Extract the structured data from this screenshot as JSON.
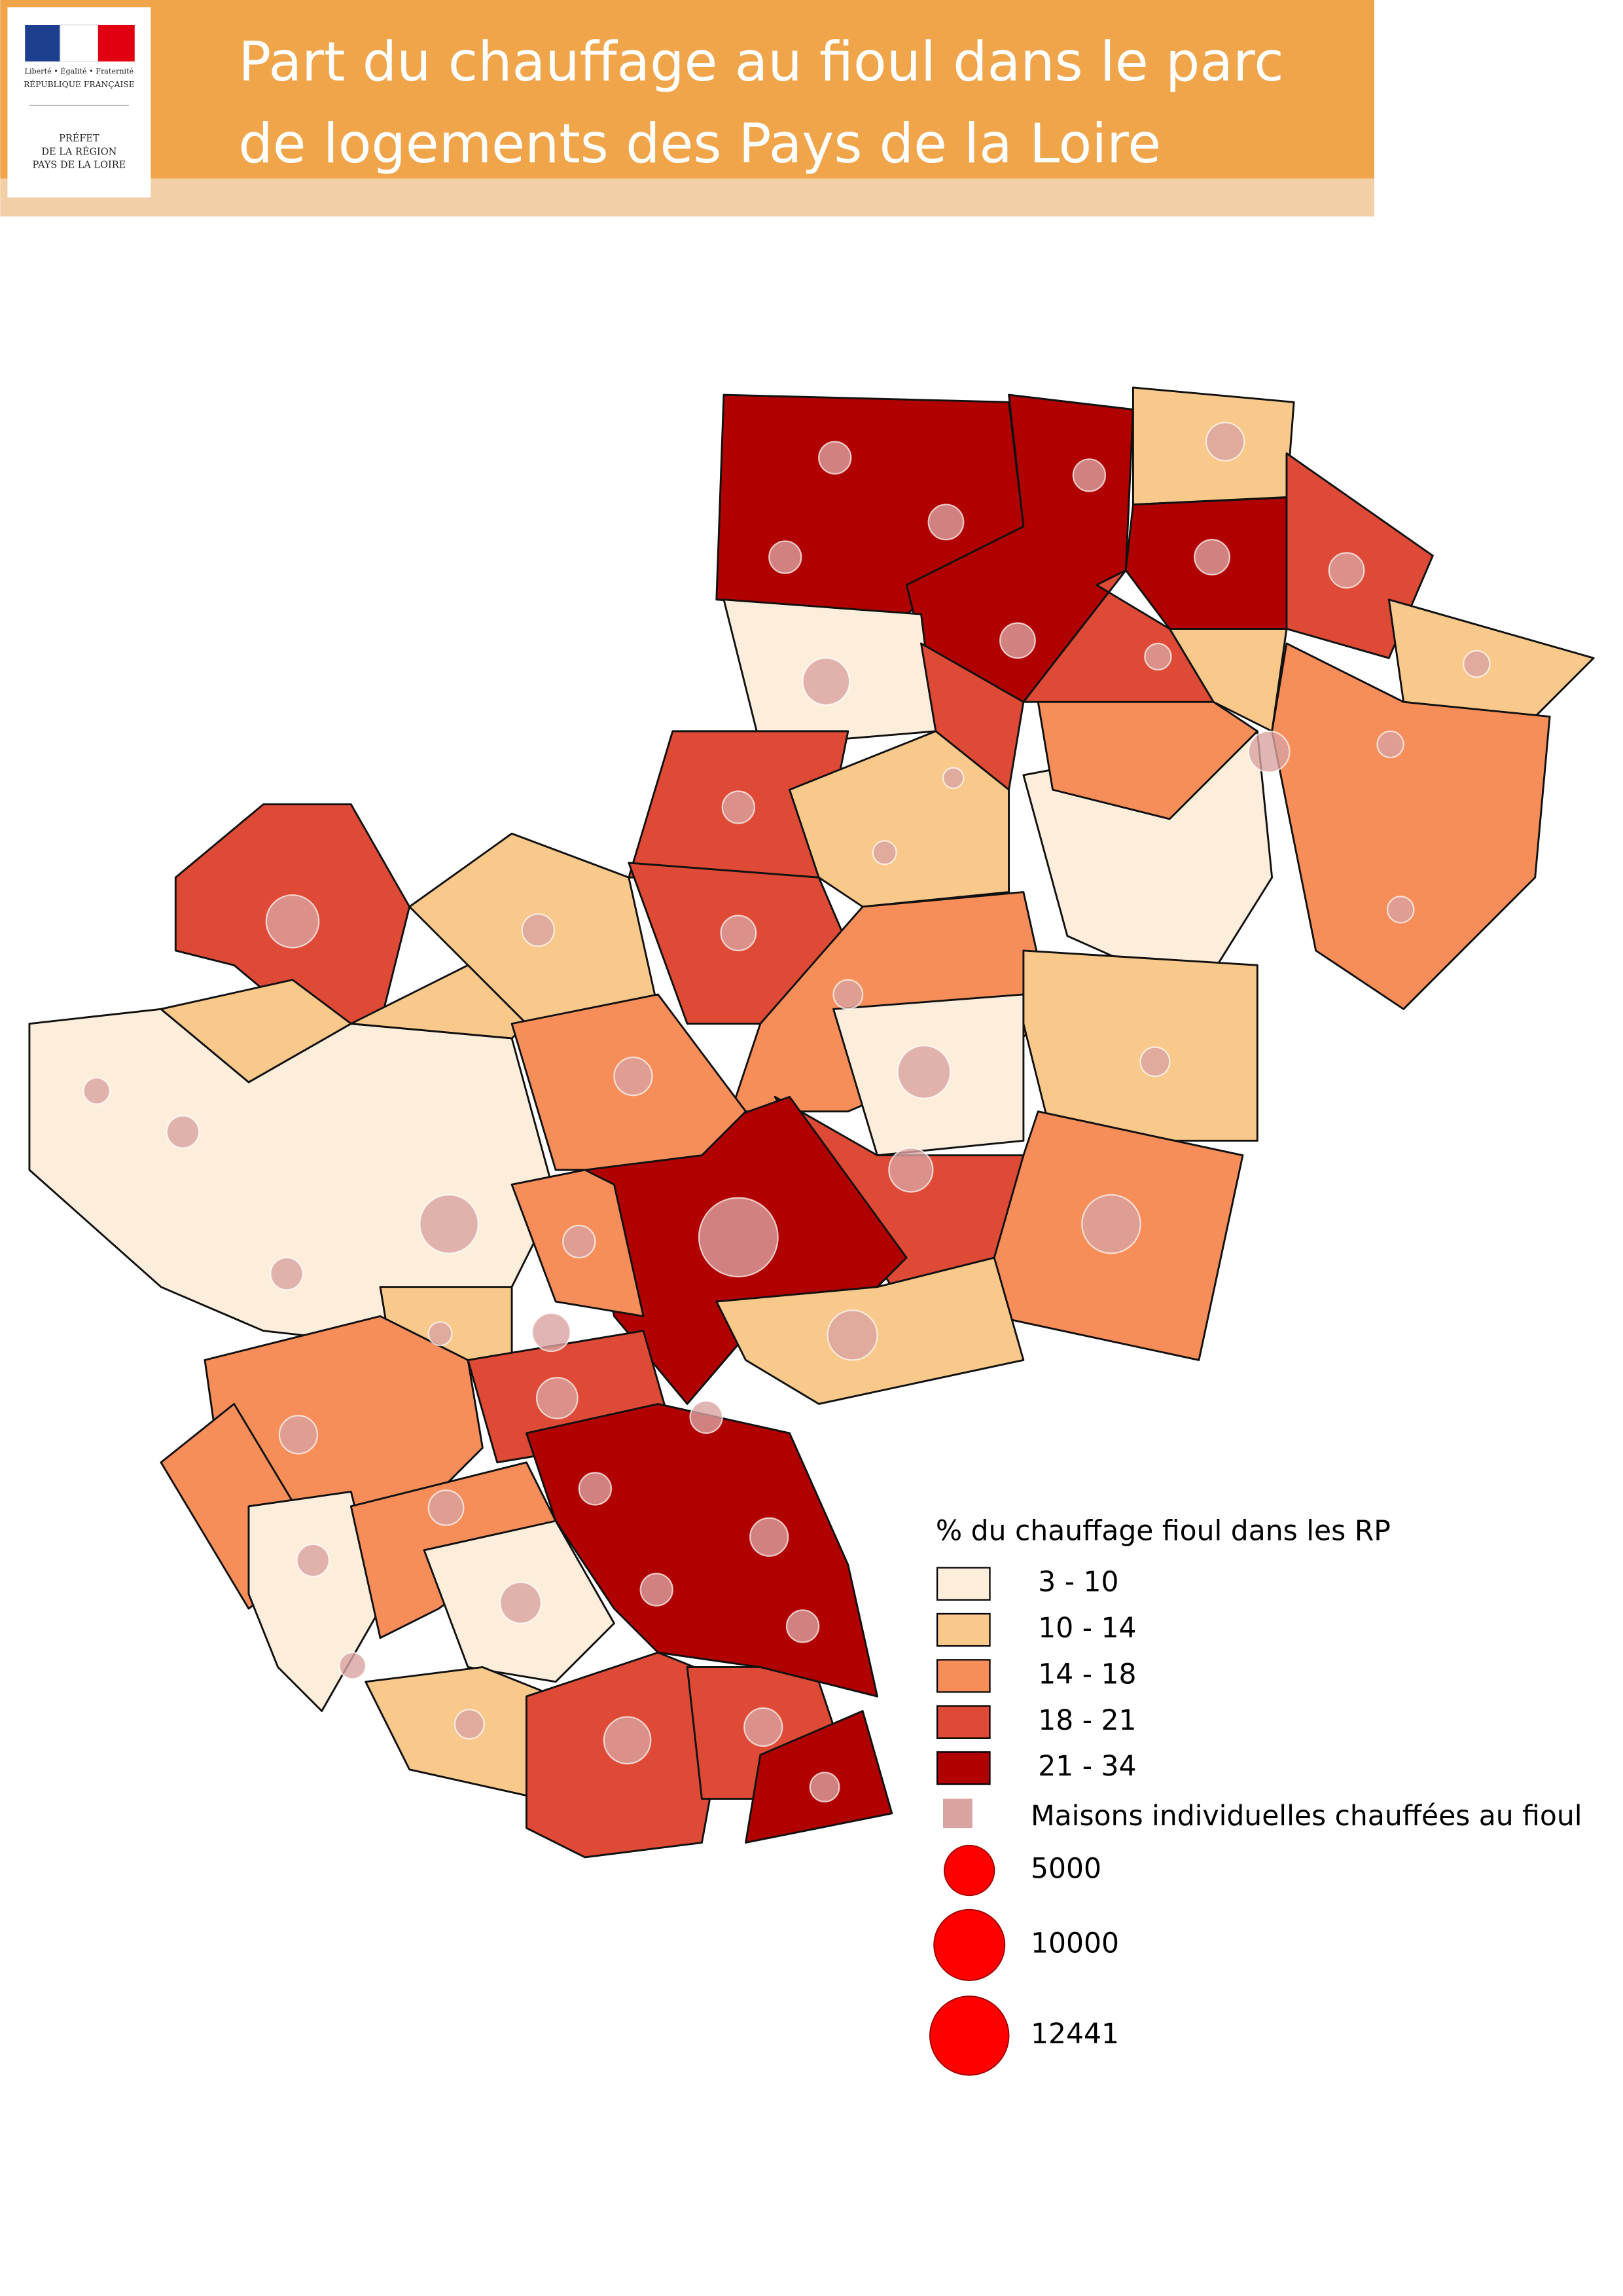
{
  "header": {
    "logo": {
      "motto": "Liberté • Égalité • Fraternité",
      "republic": "RÉPUBLIQUE FRANÇAISE",
      "prefet": [
        "PRÉFET",
        "DE LA RÉGION",
        "PAYS DE LA LOIRE"
      ]
    },
    "title": [
      "Part du chauffage au fioul dans le parc",
      "de logements des Pays de la Loire"
    ]
  },
  "legend": {
    "title": "% du chauffage fioul dans les RP",
    "classes": [
      {
        "label": "3 - 10",
        "color": "#fdeedc"
      },
      {
        "label": "10 - 14",
        "color": "#f9c98c"
      },
      {
        "label": "14 - 18",
        "color": "#f78e5a"
      },
      {
        "label": "18 - 21",
        "color": "#de4a35"
      },
      {
        "label": "21 - 34",
        "color": "#b00000"
      }
    ],
    "symbol_title": "Maisons individuelles chauffées au fioul",
    "symbol_color": "#d9a3a0",
    "circle_color": "#ff0000",
    "sizes": [
      5000,
      10000,
      12441
    ]
  }
}
